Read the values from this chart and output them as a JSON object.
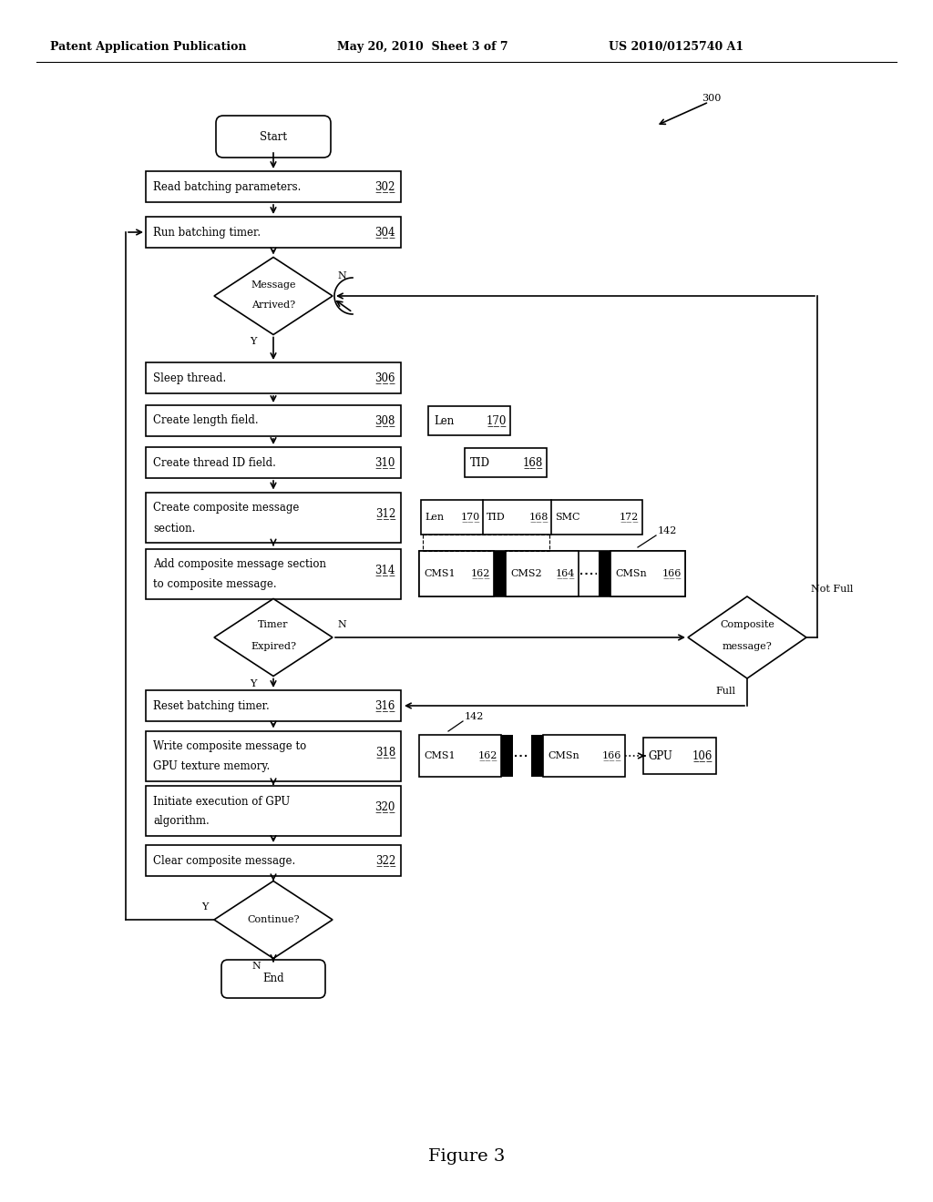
{
  "title_left": "Patent Application Publication",
  "title_mid": "May 20, 2010  Sheet 3 of 7",
  "title_right": "US 2010/0125740 A1",
  "figure_label": "Figure 3",
  "background": "#ffffff"
}
